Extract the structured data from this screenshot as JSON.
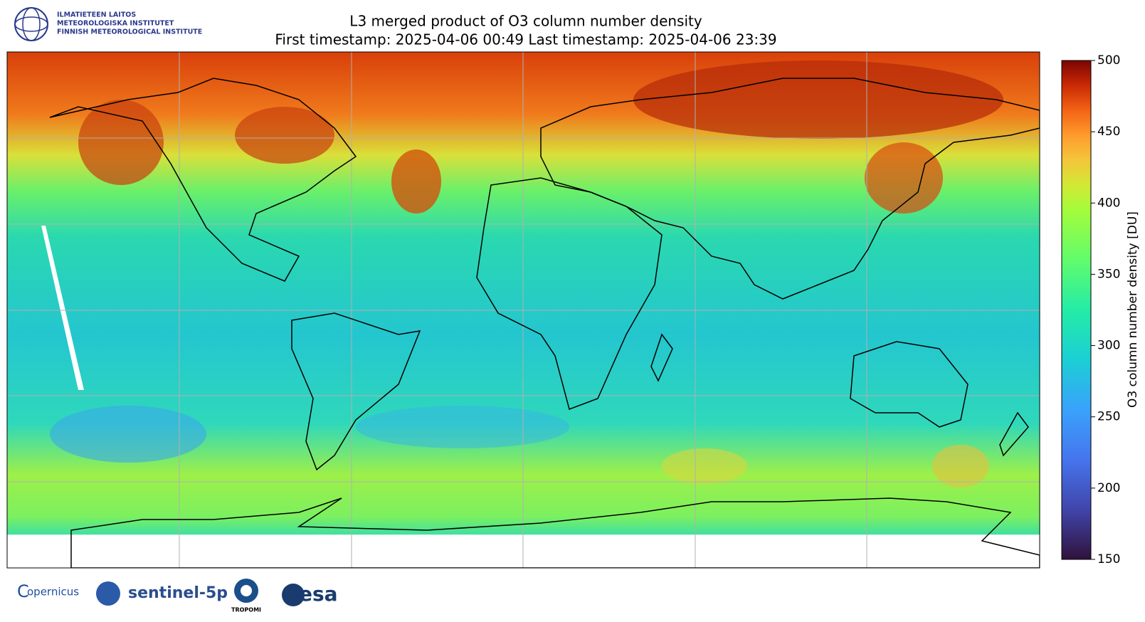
{
  "header": {
    "institute": [
      "ILMATIETEEN LAITOS",
      "METEOROLOGISKA INSTITUTET",
      "FINNISH METEOROLOGICAL INSTITUTE"
    ],
    "title": "L3 merged product of O3 column number density",
    "subtitle": "First timestamp: 2025-04-06 00:49   Last timestamp: 2025-04-06 23:39"
  },
  "colorbar": {
    "label": "O3 column number density [DU]",
    "lim": [
      150,
      500
    ],
    "ticks": [
      150,
      200,
      250,
      300,
      350,
      400,
      450,
      500
    ]
  },
  "footer": {
    "logos": [
      "opernicus",
      "sentinel-5p",
      "TROPOMI",
      "esa"
    ]
  }
}
